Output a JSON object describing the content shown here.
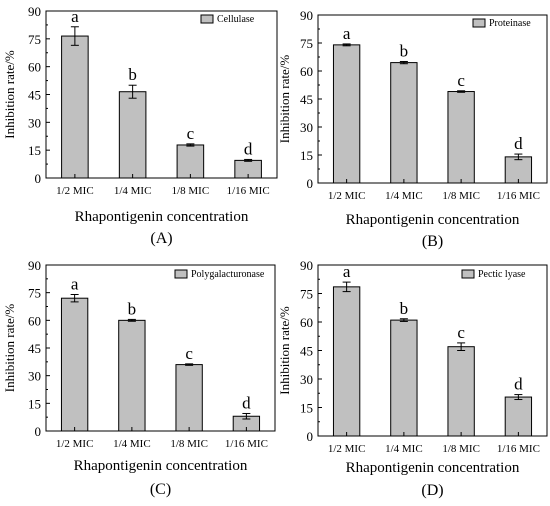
{
  "colors": {
    "bar_fill": "#c0c0c0",
    "axis": "#000000",
    "background": "#ffffff"
  },
  "chart_data": [
    {
      "type": "bar",
      "panel_label": "(A)",
      "legend_label": "Cellulase",
      "categories": [
        "1/2 MIC",
        "1/4 MIC",
        "1/8 MIC",
        "1/16 MIC"
      ],
      "values": [
        76.5,
        46.5,
        17.8,
        9.5
      ],
      "errors": [
        5.0,
        3.5,
        0.6,
        0.5
      ],
      "letters": [
        "a",
        "b",
        "c",
        "d"
      ],
      "xlabel": "Rhapontigenin concentration",
      "ylabel": "Inhibition rate/%",
      "ylim": [
        0,
        90
      ],
      "yticks": [
        "0",
        "15",
        "30",
        "45",
        "60",
        "75",
        "90"
      ],
      "legend_position": "top-right",
      "grid": false
    },
    {
      "type": "bar",
      "panel_label": "(B)",
      "legend_label": "Proteinase",
      "categories": [
        "1/2 MIC",
        "1/4 MIC",
        "1/8 MIC",
        "1/16 MIC"
      ],
      "values": [
        74.0,
        64.5,
        49.0,
        14.0
      ],
      "errors": [
        0.5,
        0.6,
        0.4,
        1.5
      ],
      "letters": [
        "a",
        "b",
        "c",
        "d"
      ],
      "xlabel": "Rhapontigenin concentration",
      "ylabel": "Inhibition rate/%",
      "ylim": [
        0,
        90
      ],
      "yticks": [
        "0",
        "15",
        "30",
        "45",
        "60",
        "75",
        "90"
      ],
      "legend_position": "top-right",
      "grid": false
    },
    {
      "type": "bar",
      "panel_label": "(C)",
      "legend_label": "Polygalacturonase",
      "categories": [
        "1/2 MIC",
        "1/4 MIC",
        "1/8 MIC",
        "1/16 MIC"
      ],
      "values": [
        72.0,
        60.0,
        36.0,
        8.0
      ],
      "errors": [
        2.0,
        0.5,
        0.4,
        1.5
      ],
      "letters": [
        "a",
        "b",
        "c",
        "d"
      ],
      "xlabel": "Rhapontigenin concentration",
      "ylabel": "Inhibition rate/%",
      "ylim": [
        0,
        90
      ],
      "yticks": [
        "0",
        "15",
        "30",
        "45",
        "60",
        "75",
        "90"
      ],
      "legend_position": "top-right",
      "grid": false
    },
    {
      "type": "bar",
      "panel_label": "(D)",
      "legend_label": "Pectic lyase",
      "categories": [
        "1/2 MIC",
        "1/4 MIC",
        "1/8 MIC",
        "1/16 MIC"
      ],
      "values": [
        78.5,
        61.0,
        47.0,
        20.5
      ],
      "errors": [
        2.5,
        0.7,
        2.0,
        1.3
      ],
      "letters": [
        "a",
        "b",
        "c",
        "d"
      ],
      "xlabel": "Rhapontigenin concentration",
      "ylabel": "Inhibition rate/%",
      "ylim": [
        0,
        90
      ],
      "yticks": [
        "0",
        "15",
        "30",
        "45",
        "60",
        "75",
        "90"
      ],
      "legend_position": "top-right",
      "grid": false
    }
  ]
}
